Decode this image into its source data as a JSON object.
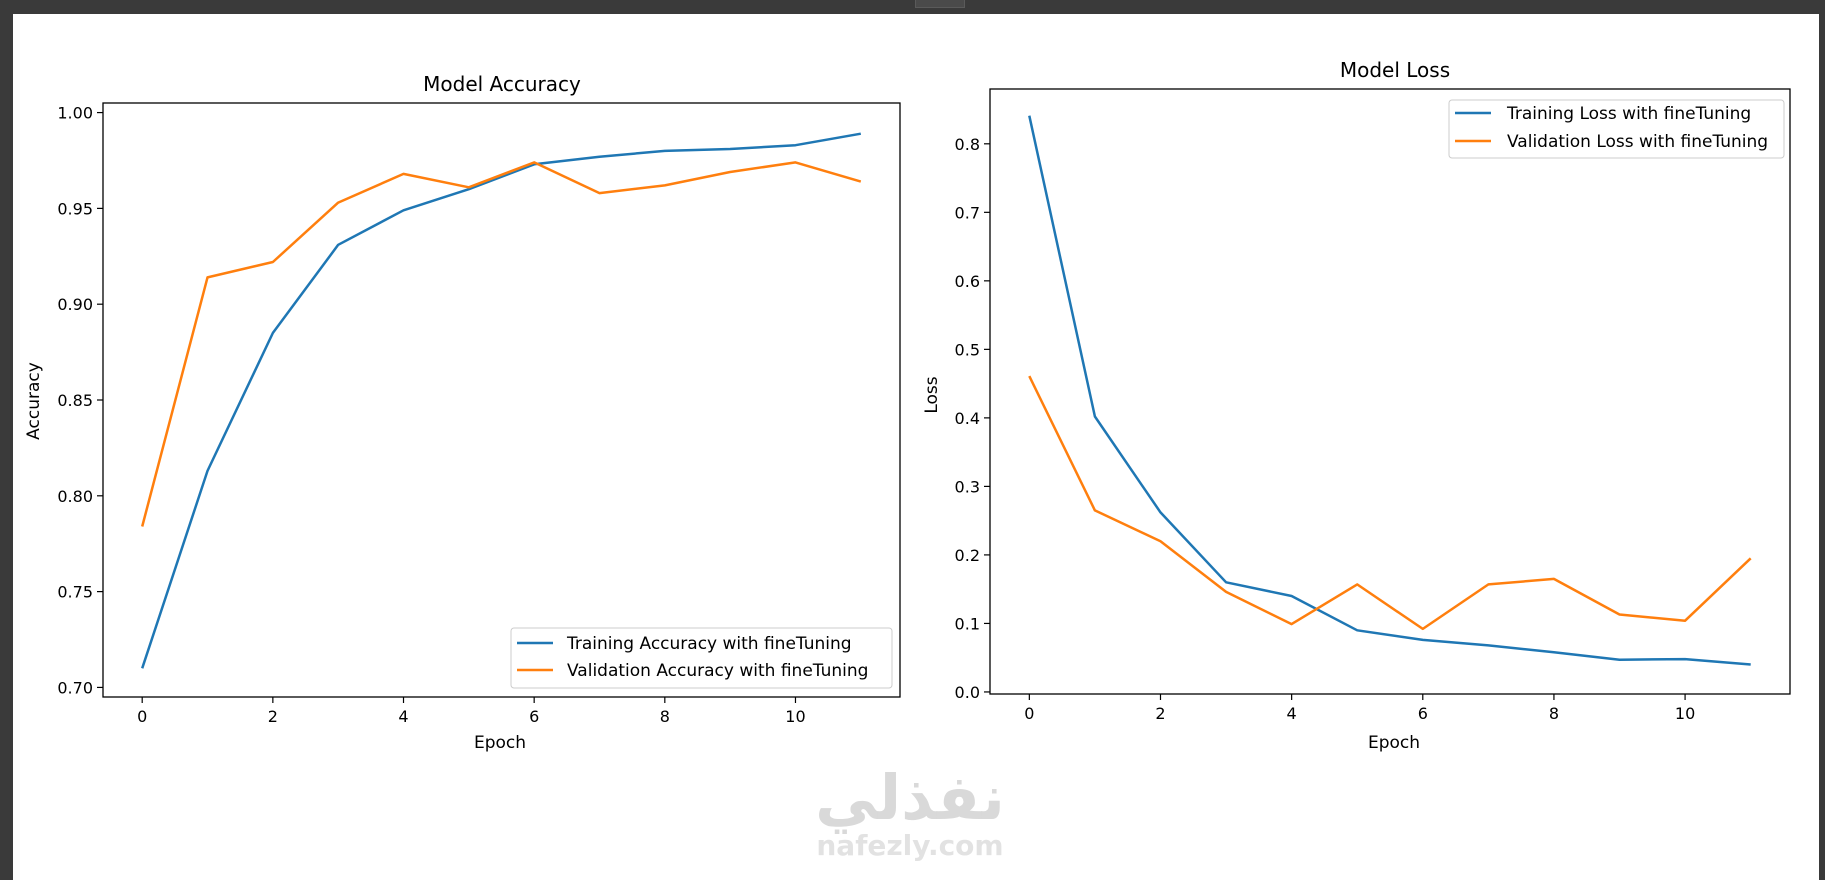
{
  "app": {
    "watermark_logo": "نفذلي",
    "watermark_url": "nafezly.com"
  },
  "chart_data": [
    {
      "type": "line",
      "title": "Model Accuracy",
      "xlabel": "Epoch",
      "ylabel": "Accuracy",
      "x": [
        0,
        1,
        2,
        3,
        4,
        5,
        6,
        7,
        8,
        9,
        10,
        11
      ],
      "xlim": [
        -0.6,
        11.6
      ],
      "ylim": [
        0.695,
        1.005
      ],
      "xticks": [
        0,
        2,
        4,
        6,
        8,
        10
      ],
      "yticks": [
        0.7,
        0.75,
        0.8,
        0.85,
        0.9,
        0.95,
        1.0
      ],
      "ytick_labels": [
        "0.70",
        "0.75",
        "0.80",
        "0.85",
        "0.90",
        "0.95",
        "1.00"
      ],
      "legend_position": "lower right",
      "series": [
        {
          "name": "Training Accuracy with fineTuning",
          "color": "#1f77b4",
          "values": [
            0.71,
            0.813,
            0.885,
            0.931,
            0.949,
            0.96,
            0.973,
            0.977,
            0.98,
            0.981,
            0.983,
            0.989
          ]
        },
        {
          "name": "Validation Accuracy with fineTuning",
          "color": "#ff7f0e",
          "values": [
            0.784,
            0.914,
            0.922,
            0.953,
            0.968,
            0.961,
            0.974,
            0.958,
            0.962,
            0.969,
            0.974,
            0.964
          ]
        }
      ]
    },
    {
      "type": "line",
      "title": "Model Loss",
      "xlabel": "Epoch",
      "ylabel": "Loss",
      "x": [
        0,
        1,
        2,
        3,
        4,
        5,
        6,
        7,
        8,
        9,
        10,
        11
      ],
      "xlim": [
        -0.6,
        11.6
      ],
      "ylim": [
        -0.003,
        0.88
      ],
      "xticks": [
        0,
        2,
        4,
        6,
        8,
        10
      ],
      "yticks": [
        0.0,
        0.1,
        0.2,
        0.3,
        0.4,
        0.5,
        0.6,
        0.7,
        0.8
      ],
      "ytick_labels": [
        "0.0",
        "0.1",
        "0.2",
        "0.3",
        "0.4",
        "0.5",
        "0.6",
        "0.7",
        "0.8"
      ],
      "legend_position": "upper right",
      "series": [
        {
          "name": "Training Loss with fineTuning",
          "color": "#1f77b4",
          "values": [
            0.841,
            0.402,
            0.262,
            0.16,
            0.14,
            0.09,
            0.076,
            0.068,
            0.058,
            0.047,
            0.048,
            0.04
          ]
        },
        {
          "name": "Validation Loss with fineTuning",
          "color": "#ff7f0e",
          "values": [
            0.461,
            0.265,
            0.22,
            0.146,
            0.099,
            0.157,
            0.092,
            0.157,
            0.165,
            0.113,
            0.104,
            0.195
          ]
        }
      ]
    }
  ]
}
